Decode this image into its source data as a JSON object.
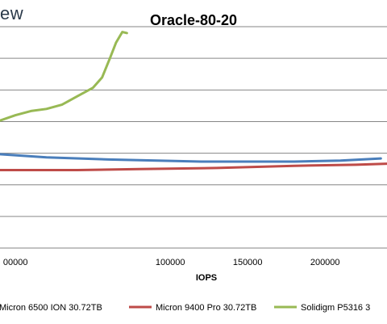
{
  "brand": {
    "text": "ew"
  },
  "chart_data": {
    "type": "line",
    "title": "Oracle-80-20",
    "xlabel": "IOPS",
    "ylabel": "",
    "xlim": [
      -10000,
      240000
    ],
    "ylim": [
      0,
      22
    ],
    "x_ticks": [
      0,
      100000,
      150000,
      200000
    ],
    "x_tick_labels": [
      "00000",
      "100000",
      "150000",
      "200000"
    ],
    "y_gridlines": [
      3,
      6,
      9,
      12,
      15,
      18,
      21
    ],
    "grid": true,
    "legend_position": "bottom",
    "series": [
      {
        "name": "Micron 6500 ION 30.72TB",
        "color": "#4a7ebb",
        "points": [
          [
            -10000,
            8.9
          ],
          [
            20000,
            8.6
          ],
          [
            60000,
            8.4
          ],
          [
            120000,
            8.2
          ],
          [
            180000,
            8.2
          ],
          [
            210000,
            8.3
          ],
          [
            236000,
            8.5
          ]
        ]
      },
      {
        "name": "Micron 9400 Pro 30.72TB",
        "color": "#be4b48",
        "points": [
          [
            -10000,
            7.4
          ],
          [
            40000,
            7.4
          ],
          [
            80000,
            7.5
          ],
          [
            130000,
            7.6
          ],
          [
            180000,
            7.8
          ],
          [
            220000,
            7.9
          ],
          [
            240000,
            8.0
          ]
        ]
      },
      {
        "name": "Solidigm P5316 3",
        "color": "#98b954",
        "points": [
          [
            -10000,
            12.1
          ],
          [
            0,
            12.6
          ],
          [
            10000,
            13.0
          ],
          [
            20000,
            13.2
          ],
          [
            30000,
            13.6
          ],
          [
            40000,
            14.4
          ],
          [
            50000,
            15.2
          ],
          [
            56000,
            16.2
          ],
          [
            61000,
            18.0
          ],
          [
            65000,
            19.5
          ],
          [
            69000,
            20.5
          ],
          [
            72000,
            20.4
          ]
        ]
      }
    ]
  }
}
